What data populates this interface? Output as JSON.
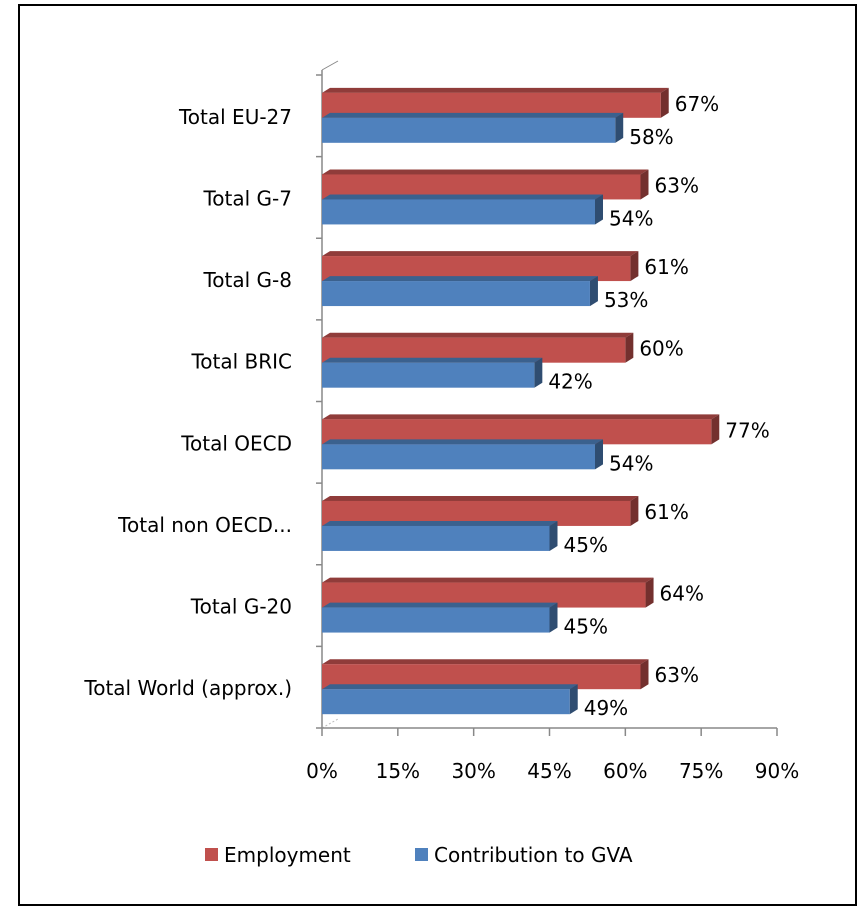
{
  "chart_data": {
    "type": "bar",
    "orientation": "horizontal",
    "categories": [
      "Total EU-27",
      "Total G-7",
      "Total G-8",
      "Total BRIC",
      "Total OECD",
      "Total non OECD...",
      "Total G-20",
      "Total World (approx.)"
    ],
    "series": [
      {
        "name": "Employment",
        "color": "#C0504D",
        "values": [
          67,
          63,
          61,
          60,
          77,
          61,
          64,
          63
        ],
        "labels": [
          "67%",
          "63%",
          "61%",
          "60%",
          "77%",
          "61%",
          "64%",
          "63%"
        ]
      },
      {
        "name": "Contribution to GVA",
        "color": "#4F81BD",
        "values": [
          58,
          54,
          53,
          42,
          54,
          45,
          45,
          49
        ],
        "labels": [
          "58%",
          "54%",
          "53%",
          "42%",
          "54%",
          "45%",
          "45%",
          "49%"
        ]
      }
    ],
    "xlim": [
      0,
      90
    ],
    "x_ticks": [
      "0%",
      "15%",
      "30%",
      "45%",
      "60%",
      "75%",
      "90%"
    ],
    "legend_position": "bottom",
    "grid": false,
    "style": "3d-clustered"
  }
}
